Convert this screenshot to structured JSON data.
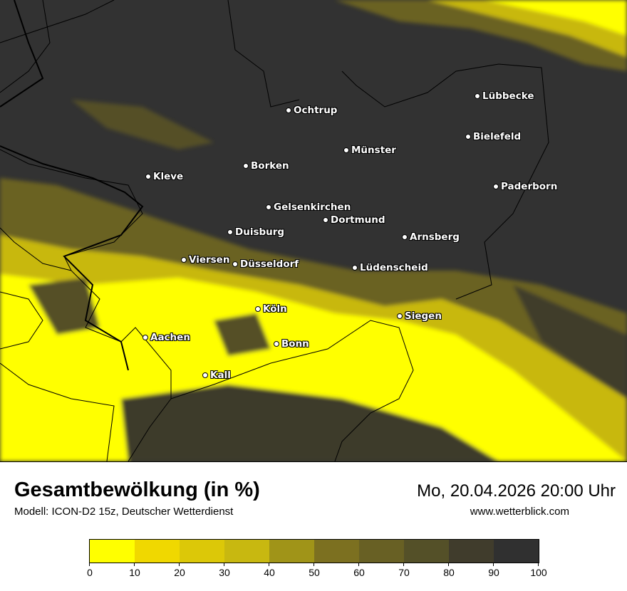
{
  "title": "Gesamtbewölkung (in %)",
  "subtitle": "Modell: ICON-D2 15z, Deutscher Wetterdienst",
  "datetime": "Mo, 20.04.2026 20:00 Uhr",
  "website": "www.wetterblick.com",
  "cities": [
    "Lübbecke",
    "Ochtrup",
    "Bielefeld",
    "Münster",
    "Borken",
    "Kleve",
    "Paderborn",
    "Gelsenkirchen",
    "Dortmund",
    "Duisburg",
    "Arnsberg",
    "Viersen",
    "Düsseldorf",
    "Lüdenscheid",
    "Köln",
    "Siegen",
    "Aachen",
    "Bonn",
    "Kall"
  ],
  "legend": {
    "ticks": [
      "0",
      "10",
      "20",
      "30",
      "40",
      "50",
      "60",
      "70",
      "80",
      "90",
      "100"
    ],
    "colors": [
      "#ffff00",
      "#f0d800",
      "#dcc808",
      "#c8b810",
      "#a09418",
      "#7c7020",
      "#686024",
      "#545028",
      "#403c2c",
      "#303030"
    ]
  }
}
